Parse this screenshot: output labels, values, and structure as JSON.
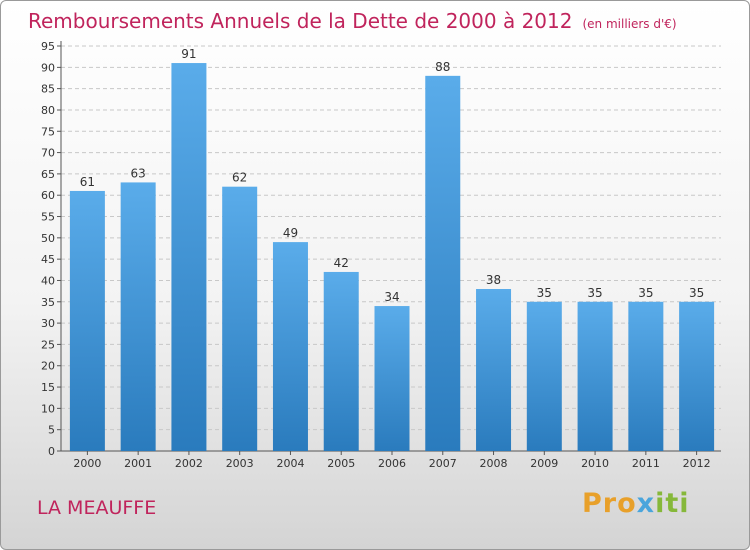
{
  "header": {
    "title": "Remboursements Annuels de la Dette de 2000 à 2012",
    "unit": "(en milliers d'€)"
  },
  "footer": {
    "commune": "LA MEAUFFE",
    "logo_parts": [
      "Pro",
      "x",
      "iti"
    ]
  },
  "colors": {
    "bar_top": "#5aacea",
    "bar_bottom": "#2a7bbd",
    "title": "#c0245c"
  },
  "chart_data": {
    "type": "bar",
    "title": "Remboursements Annuels de la Dette de 2000 à 2012",
    "categories": [
      "2000",
      "2001",
      "2002",
      "2003",
      "2004",
      "2005",
      "2006",
      "2007",
      "2008",
      "2009",
      "2010",
      "2011",
      "2012"
    ],
    "values": [
      61,
      63,
      91,
      62,
      49,
      42,
      34,
      88,
      38,
      35,
      35,
      35,
      35
    ],
    "data_labels": [
      "61",
      "63",
      "91",
      "62",
      "49",
      "42",
      "34",
      "88",
      "38",
      "35",
      "35",
      "35",
      "35"
    ],
    "y_ticks": [
      0,
      5,
      10,
      15,
      20,
      25,
      30,
      35,
      40,
      45,
      50,
      55,
      60,
      65,
      70,
      75,
      80,
      85,
      90,
      95
    ],
    "ylim": [
      0,
      95
    ],
    "grid": true,
    "legend": "none"
  }
}
